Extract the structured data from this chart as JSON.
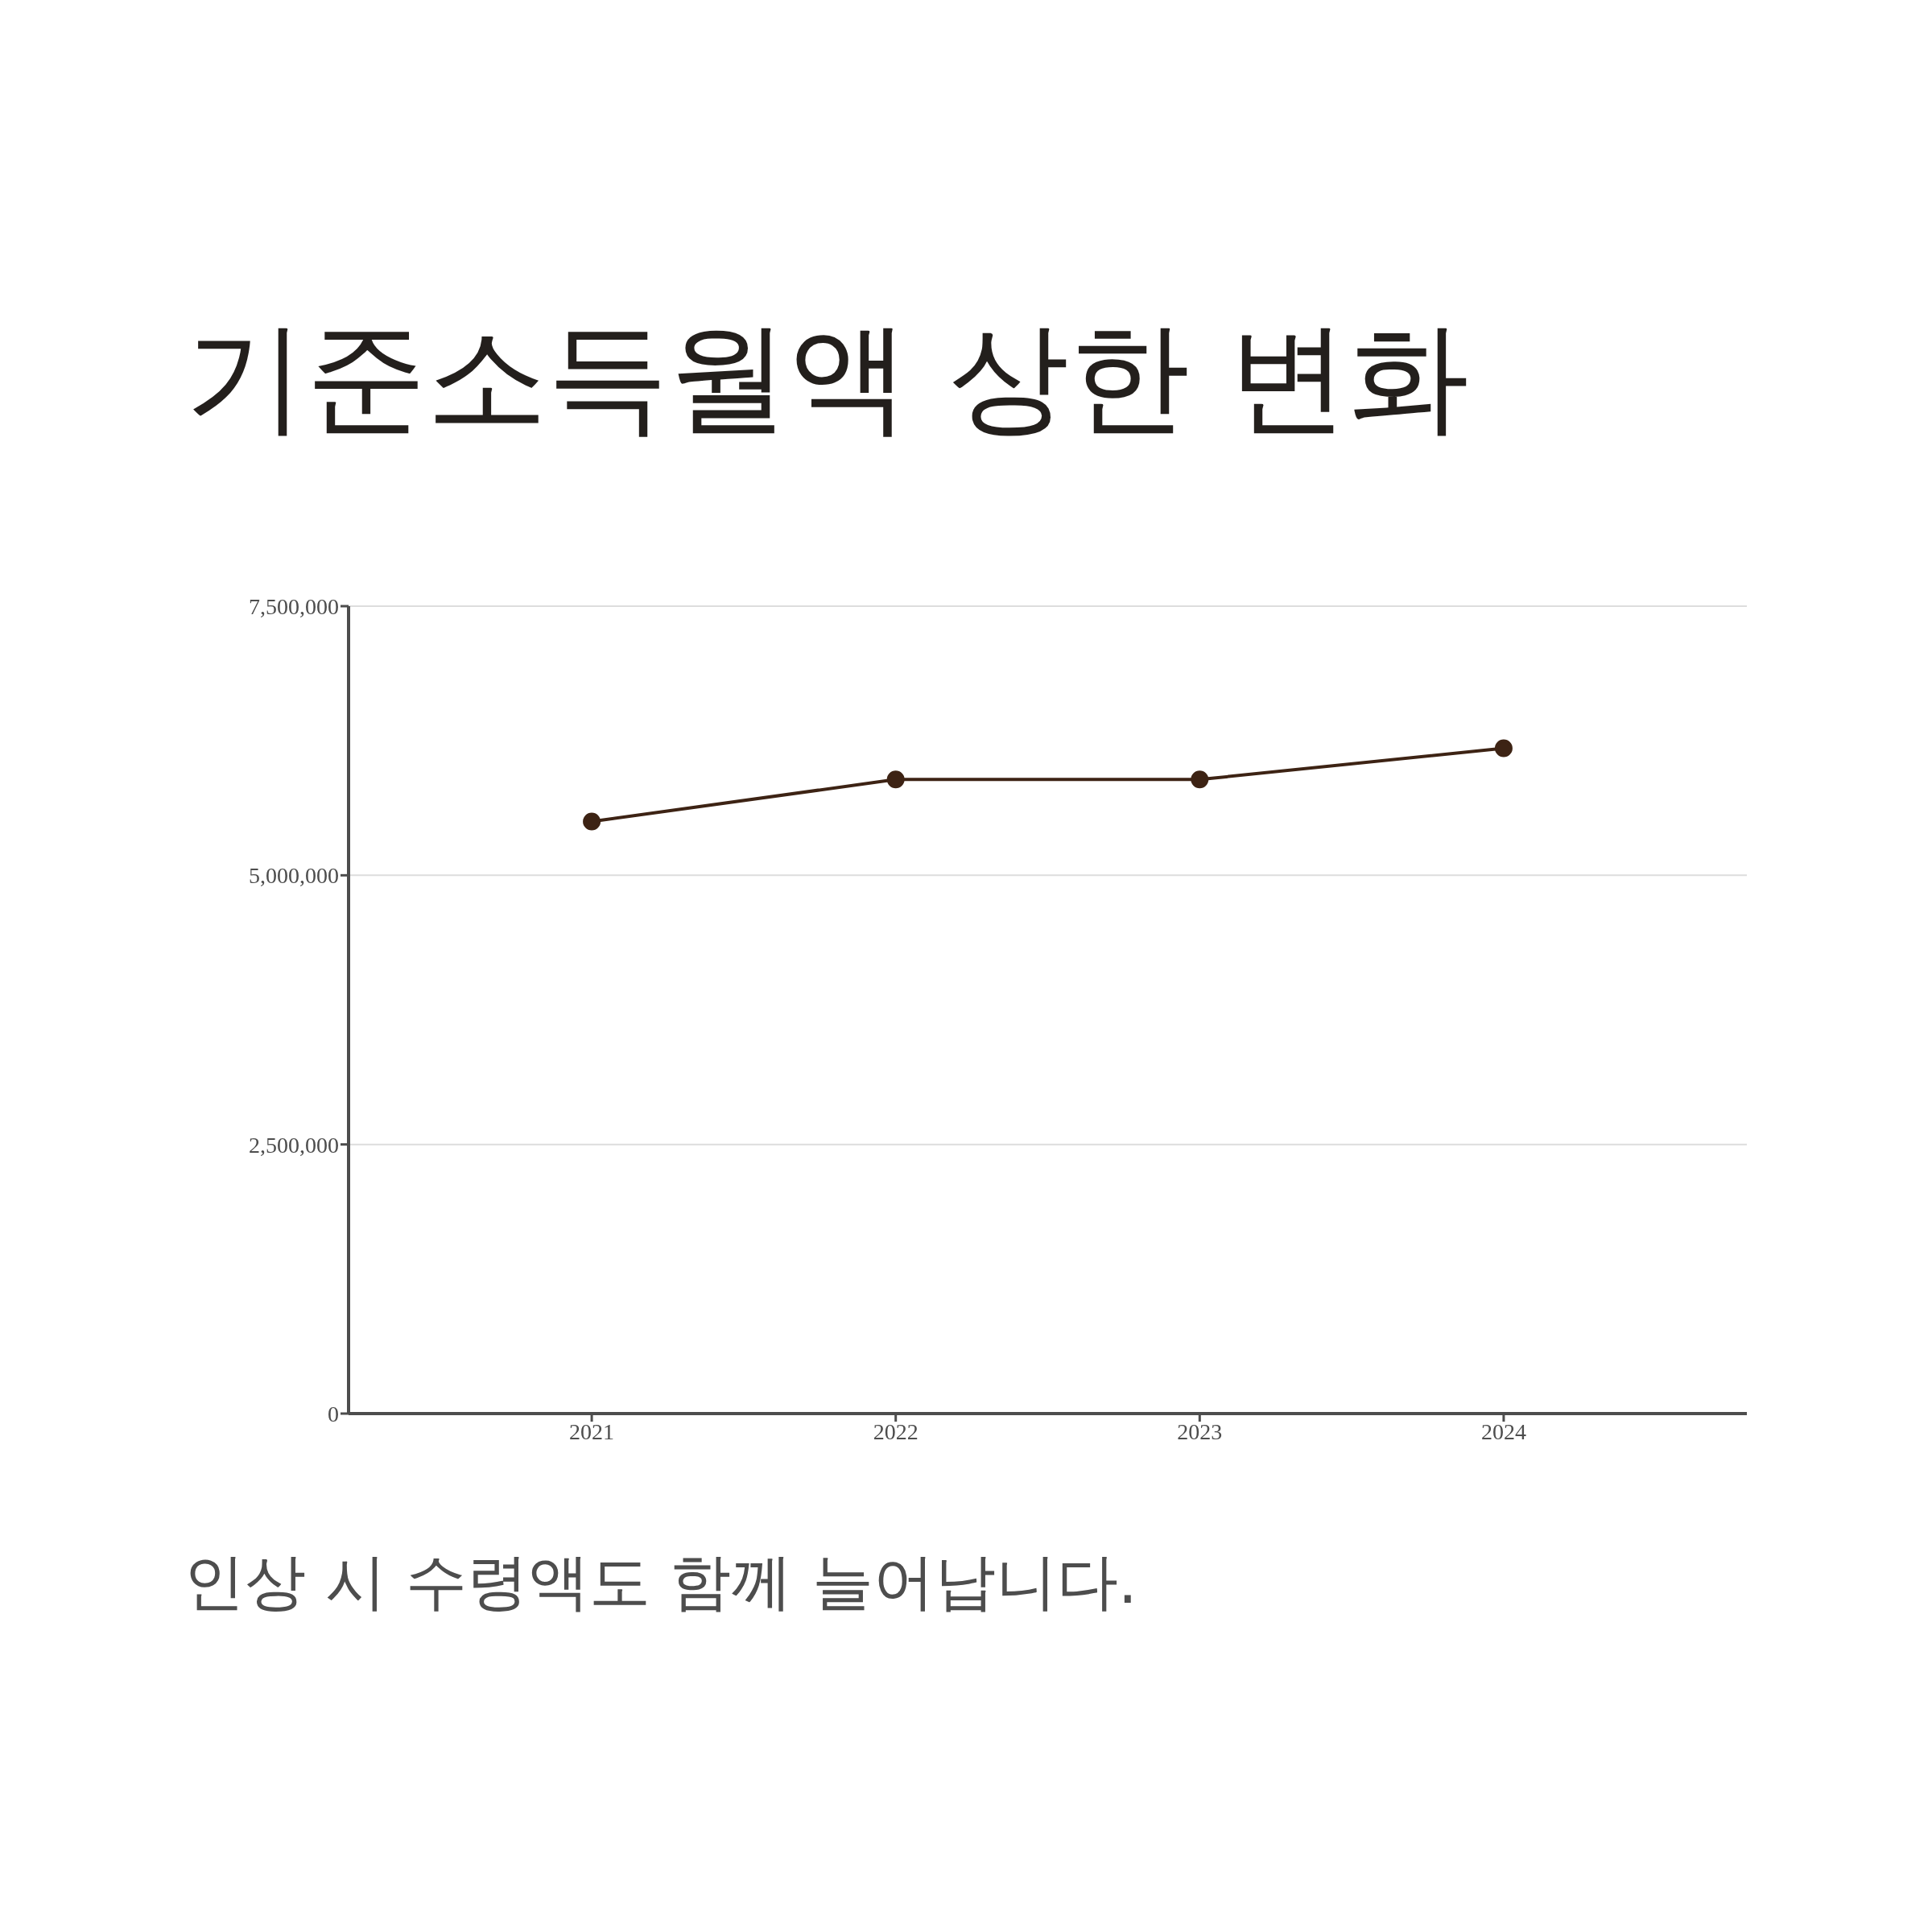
{
  "chart_data": {
    "type": "line",
    "title": "기준소득월액 상한 변화",
    "annotations": [
      "인상 시 수령액도 함께 늘어납니다."
    ],
    "x": [
      2021,
      2022,
      2023,
      2024
    ],
    "series": [
      {
        "color": "#3d2314",
        "values": [
          5500000,
          5890000,
          5890000,
          6180000
        ]
      }
    ],
    "xlim": [
      2020.2,
      2024.8
    ],
    "xticks": [
      2021,
      2022,
      2023,
      2024
    ],
    "ylim": [
      0,
      7500000
    ],
    "yticks": [
      0,
      {
        "value": 2500000,
        "label": "2,500,000"
      },
      {
        "value": 5000000,
        "label": "5,000,000"
      },
      {
        "value": 7500000,
        "label": "7,500,000"
      }
    ],
    "grid": "y",
    "marker": "circle"
  }
}
